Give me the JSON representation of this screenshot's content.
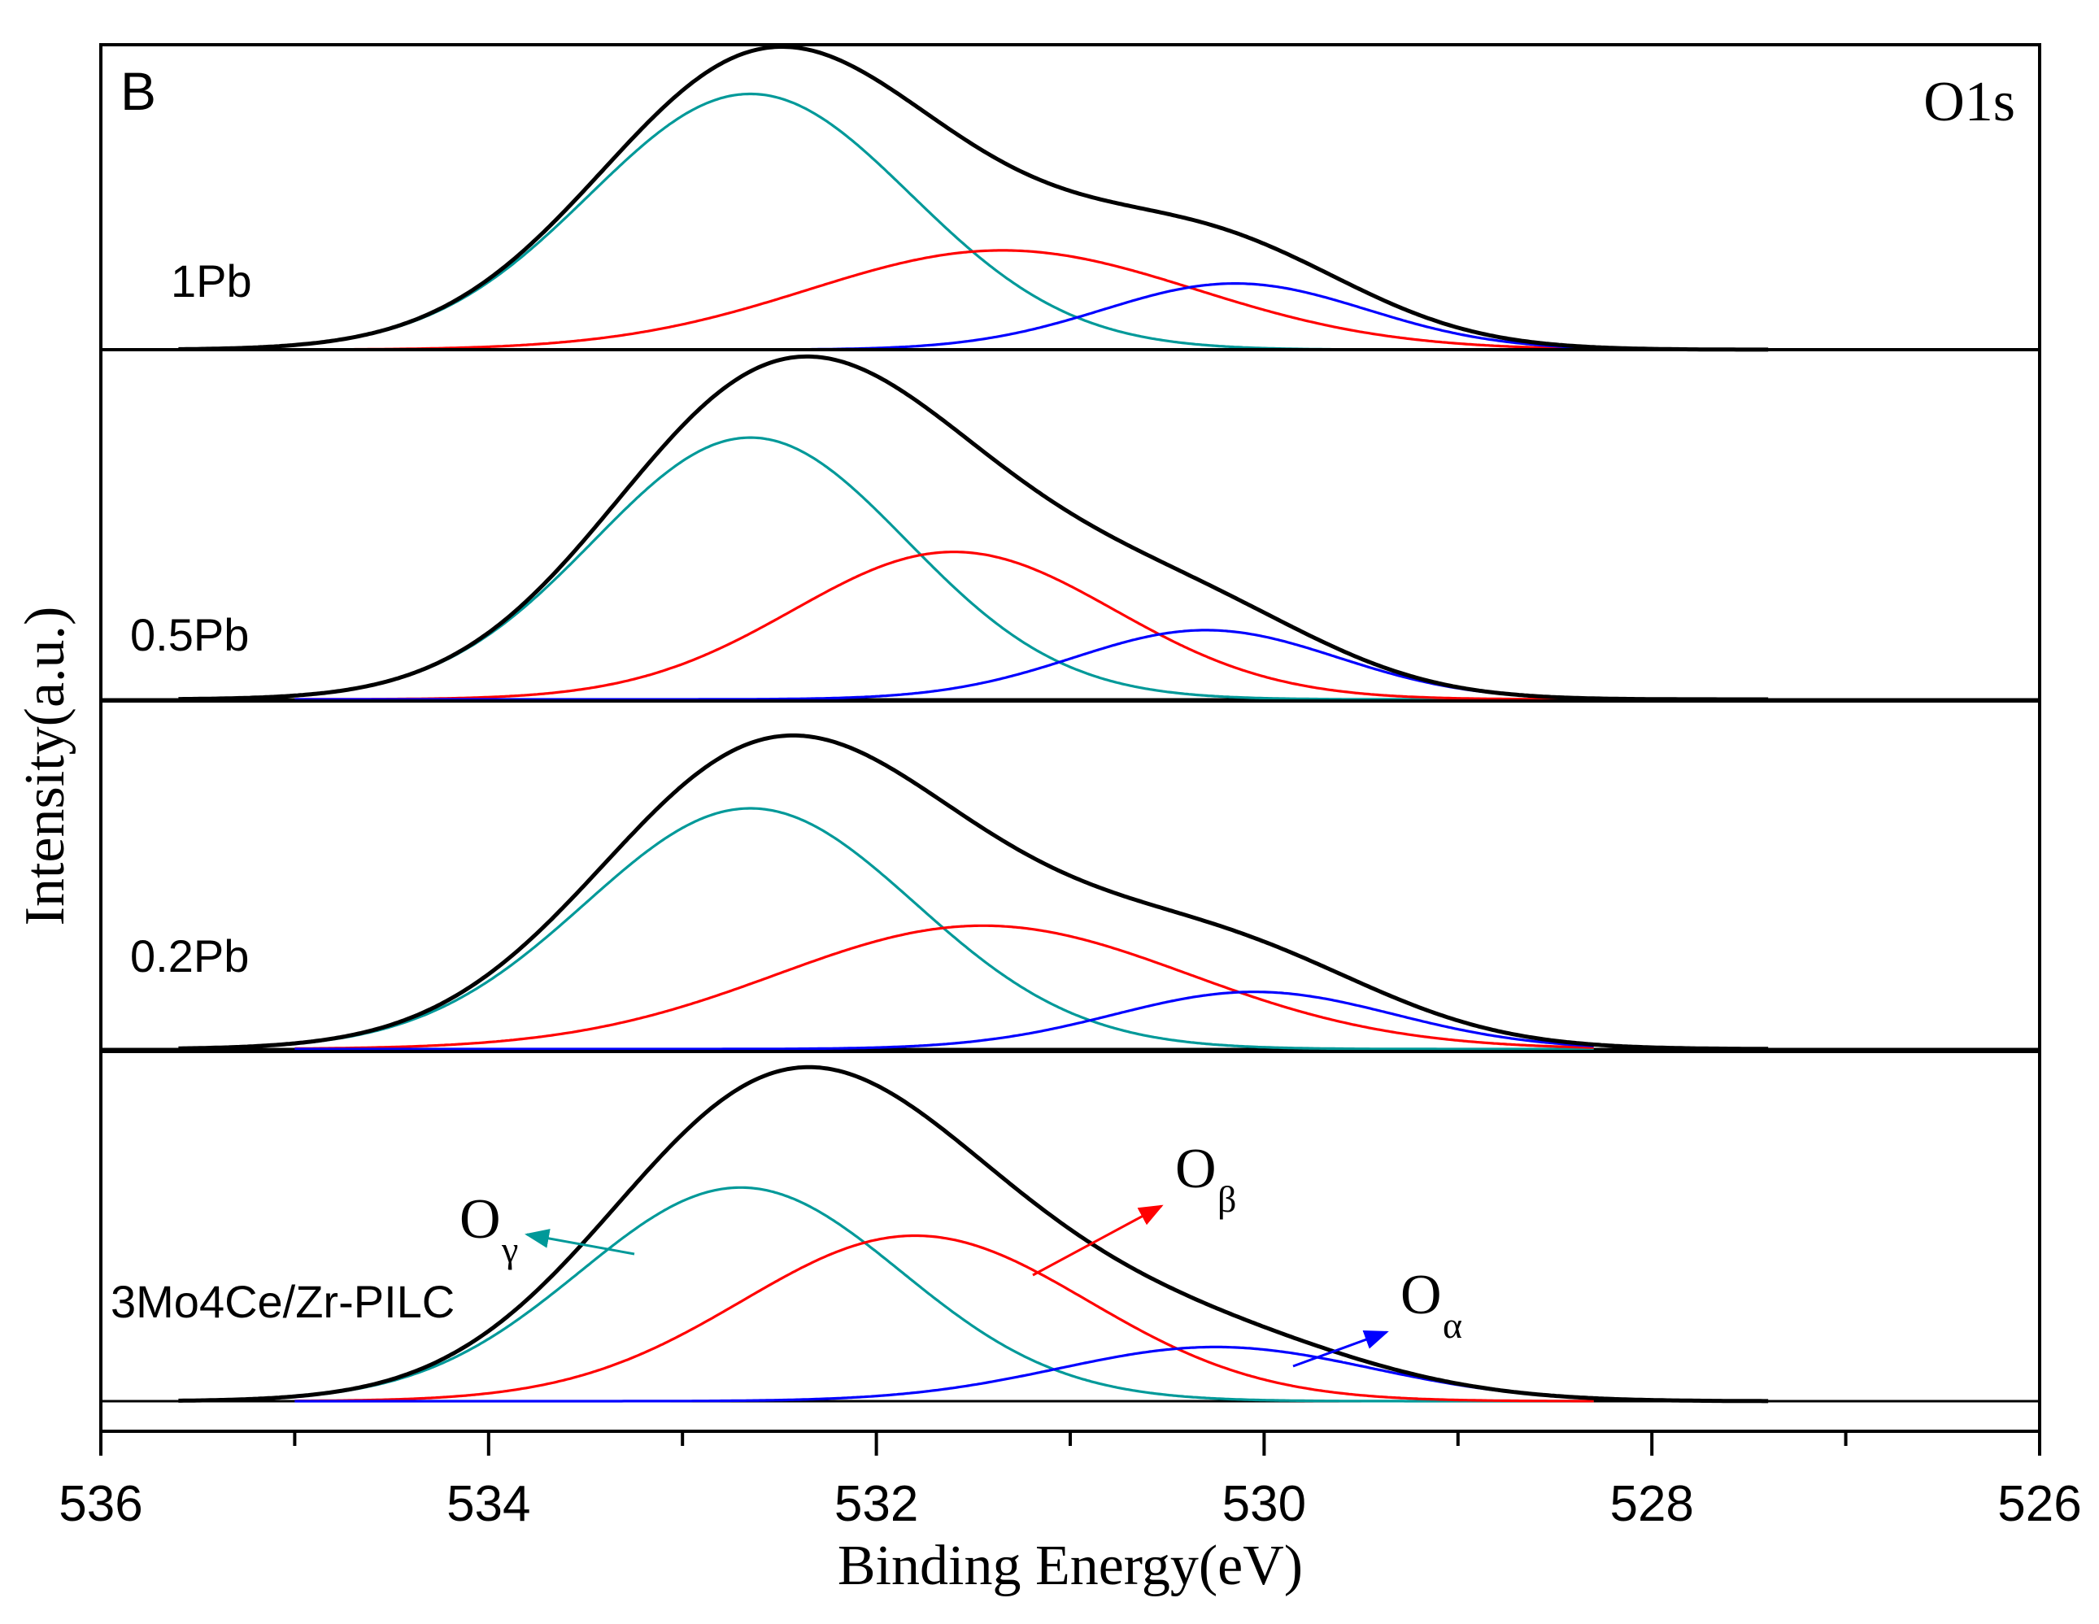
{
  "chart_data": {
    "type": "line",
    "panel_label": "B",
    "title": "O1s",
    "xlabel": "Binding Energy(eV)",
    "ylabel": "Intensity(a.u.)",
    "xlim": [
      536,
      526
    ],
    "x_ticks": [
      "536",
      "534",
      "532",
      "530",
      "528",
      "526"
    ],
    "x_tick_values": [
      536,
      534,
      532,
      530,
      528,
      526
    ],
    "minor_tick_step": 1,
    "colors": {
      "envelope": "#000000",
      "O_gamma": "#009999",
      "O_beta": "#ff0000",
      "O_alpha": "#0000ff"
    },
    "series_names": [
      "envelope",
      "O_gamma",
      "O_beta",
      "O_alpha"
    ],
    "samples": [
      {
        "name": "1Pb",
        "peaks": [
          {
            "component": "O_gamma",
            "center": 532.65,
            "height": 0.85,
            "fwhm": 1.95
          },
          {
            "component": "O_beta",
            "center": 531.35,
            "height": 0.33,
            "fwhm": 2.35
          },
          {
            "component": "O_alpha",
            "center": 530.15,
            "height": 0.22,
            "fwhm": 1.6
          }
        ]
      },
      {
        "name": "0.5Pb",
        "peaks": [
          {
            "component": "O_gamma",
            "center": 532.65,
            "height": 0.87,
            "fwhm": 1.9
          },
          {
            "component": "O_beta",
            "center": 531.6,
            "height": 0.49,
            "fwhm": 1.95
          },
          {
            "component": "O_alpha",
            "center": 530.3,
            "height": 0.23,
            "fwhm": 1.6
          }
        ]
      },
      {
        "name": "0.2Pb",
        "peaks": [
          {
            "component": "O_gamma",
            "center": 532.65,
            "height": 0.8,
            "fwhm": 2.0
          },
          {
            "component": "O_beta",
            "center": 531.45,
            "height": 0.41,
            "fwhm": 2.5
          },
          {
            "component": "O_alpha",
            "center": 530.05,
            "height": 0.19,
            "fwhm": 1.7
          }
        ]
      },
      {
        "name": "3Mo4Ce/Zr-PILC",
        "peaks": [
          {
            "component": "O_gamma",
            "center": 532.7,
            "height": 0.71,
            "fwhm": 1.95
          },
          {
            "component": "O_beta",
            "center": 531.8,
            "height": 0.55,
            "fwhm": 2.1
          },
          {
            "component": "O_alpha",
            "center": 530.25,
            "height": 0.18,
            "fwhm": 1.9
          }
        ]
      }
    ],
    "annotations": [
      {
        "text": "O",
        "sub": "γ",
        "component": "O_gamma"
      },
      {
        "text": "O",
        "sub": "β",
        "component": "O_beta"
      },
      {
        "text": "O",
        "sub": "α",
        "component": "O_alpha"
      }
    ]
  }
}
